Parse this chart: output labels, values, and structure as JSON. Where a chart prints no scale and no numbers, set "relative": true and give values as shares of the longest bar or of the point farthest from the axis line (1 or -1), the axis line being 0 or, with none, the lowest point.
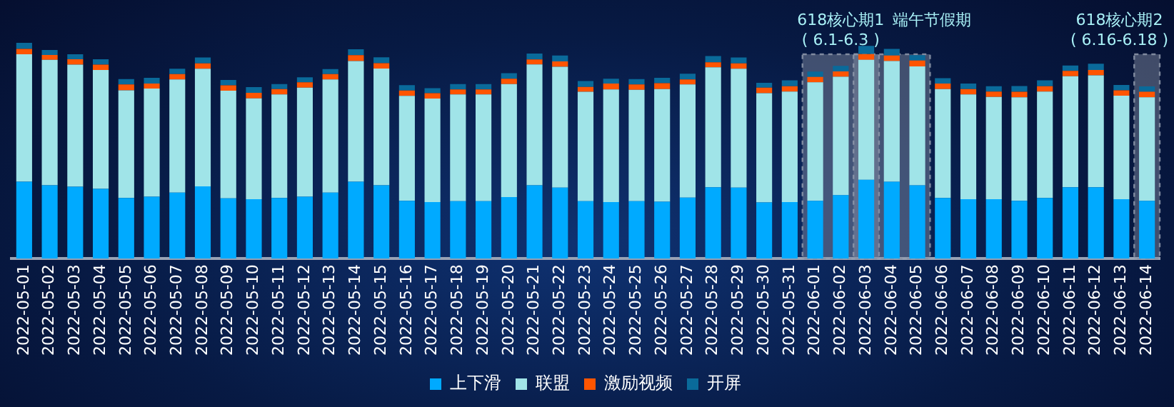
{
  "chart_data": {
    "type": "bar",
    "stacked": true,
    "relative": true,
    "legend": "bottom",
    "categories": [
      "2022-05-01",
      "2022-05-02",
      "2022-05-03",
      "2022-05-04",
      "2022-05-05",
      "2022-05-06",
      "2022-05-07",
      "2022-05-08",
      "2022-05-09",
      "2022-05-10",
      "2022-05-11",
      "2022-05-12",
      "2022-05-13",
      "2022-05-14",
      "2022-05-15",
      "2022-05-16",
      "2022-05-17",
      "2022-05-18",
      "2022-05-19",
      "2022-05-20",
      "2022-05-21",
      "2022-05-22",
      "2022-05-23",
      "2022-05-24",
      "2022-05-25",
      "2022-05-26",
      "2022-05-27",
      "2022-05-28",
      "2022-05-29",
      "2022-05-30",
      "2022-05-31",
      "2022-06-01",
      "2022-06-02",
      "2022-06-03",
      "2022-06-04",
      "2022-06-05",
      "2022-06-06",
      "2022-06-07",
      "2022-06-08",
      "2022-06-09",
      "2022-06-10",
      "2022-06-11",
      "2022-06-12",
      "2022-06-13",
      "2022-06-14"
    ],
    "series": [
      {
        "name": "上下滑",
        "color": "#00aaff",
        "values": [
          0.356,
          0.34,
          0.333,
          0.323,
          0.281,
          0.287,
          0.306,
          0.335,
          0.279,
          0.275,
          0.281,
          0.287,
          0.306,
          0.356,
          0.34,
          0.268,
          0.262,
          0.266,
          0.266,
          0.285,
          0.34,
          0.329,
          0.266,
          0.262,
          0.266,
          0.264,
          0.283,
          0.331,
          0.329,
          0.26,
          0.262,
          0.268,
          0.294,
          0.365,
          0.356,
          0.34,
          0.281,
          0.275,
          0.275,
          0.268,
          0.281,
          0.331,
          0.331,
          0.275,
          0.268
        ]
      },
      {
        "name": "联盟",
        "color": "#a0e4e8",
        "values": [
          0.591,
          0.581,
          0.566,
          0.551,
          0.499,
          0.501,
          0.524,
          0.545,
          0.499,
          0.468,
          0.48,
          0.505,
          0.524,
          0.56,
          0.541,
          0.486,
          0.48,
          0.495,
          0.495,
          0.524,
          0.56,
          0.56,
          0.507,
          0.522,
          0.516,
          0.522,
          0.524,
          0.556,
          0.551,
          0.507,
          0.512,
          0.549,
          0.549,
          0.556,
          0.56,
          0.551,
          0.505,
          0.486,
          0.474,
          0.48,
          0.493,
          0.514,
          0.518,
          0.48,
          0.48
        ]
      },
      {
        "name": "激励视频",
        "color": "#ff5500",
        "values": [
          0.025,
          0.023,
          0.025,
          0.025,
          0.027,
          0.023,
          0.025,
          0.025,
          0.025,
          0.025,
          0.025,
          0.025,
          0.025,
          0.027,
          0.025,
          0.025,
          0.025,
          0.023,
          0.023,
          0.025,
          0.023,
          0.025,
          0.023,
          0.027,
          0.025,
          0.027,
          0.023,
          0.023,
          0.025,
          0.025,
          0.025,
          0.025,
          0.025,
          0.027,
          0.025,
          0.027,
          0.025,
          0.025,
          0.025,
          0.025,
          0.025,
          0.025,
          0.025,
          0.025,
          0.025
        ]
      },
      {
        "name": "开屏",
        "color": "#0a6a9a",
        "values": [
          0.028,
          0.023,
          0.023,
          0.025,
          0.025,
          0.027,
          0.025,
          0.027,
          0.025,
          0.027,
          0.023,
          0.023,
          0.023,
          0.027,
          0.027,
          0.025,
          0.023,
          0.025,
          0.025,
          0.025,
          0.027,
          0.027,
          0.027,
          0.023,
          0.025,
          0.025,
          0.027,
          0.029,
          0.027,
          0.023,
          0.027,
          0.025,
          0.025,
          0.038,
          0.031,
          0.025,
          0.025,
          0.025,
          0.025,
          0.027,
          0.027,
          0.025,
          0.029,
          0.025,
          0.025
        ]
      }
    ],
    "bands": [
      {
        "axis": "x",
        "from": "2022-06-01",
        "to": "2022-06-03",
        "label": "618核心期1\n( 6.1-6.3 )",
        "color": "#8a93a6"
      },
      {
        "axis": "x",
        "from": "2022-06-03",
        "to": "2022-06-05",
        "label": "端午节假期",
        "color": "#8a93a6"
      },
      {
        "axis": "x",
        "from": "2022-06-14",
        "to": "2022-06-14",
        "label": "618核心期2\n( 6.16-6.18 )",
        "color": "#8a93a6"
      }
    ]
  }
}
